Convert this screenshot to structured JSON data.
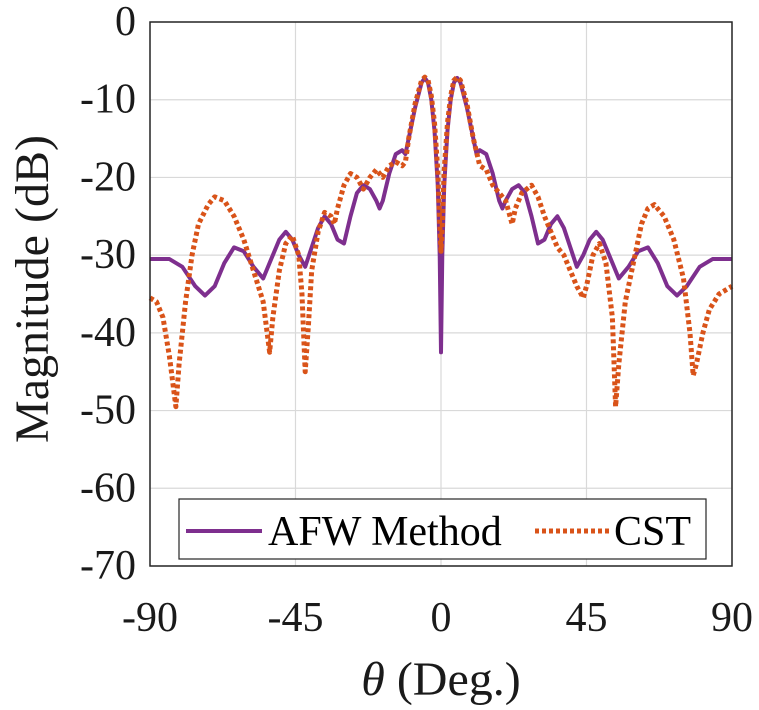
{
  "chart_data": {
    "type": "line",
    "title": "",
    "xlabel_symbol": "θ",
    "xlabel_rest": " (Deg.)",
    "ylabel": "Magnitude (dB)",
    "xlim": [
      -90,
      90
    ],
    "ylim": [
      -70,
      0
    ],
    "xticks": [
      -90,
      -45,
      0,
      45,
      90
    ],
    "yticks": [
      0,
      -10,
      -20,
      -30,
      -40,
      -50,
      -60,
      -70
    ],
    "grid": true,
    "legend": {
      "placement": "bottom-center",
      "orientation": "horizontal"
    },
    "series": [
      {
        "name": "AFW Method",
        "color": "#7e2f8e",
        "style": "solid",
        "points": [
          [
            -90,
            -30.5
          ],
          [
            -84,
            -30.5
          ],
          [
            -80,
            -31.5
          ],
          [
            -76,
            -34
          ],
          [
            -73,
            -35.2
          ],
          [
            -70,
            -34
          ],
          [
            -67,
            -31
          ],
          [
            -64,
            -29
          ],
          [
            -61,
            -29.5
          ],
          [
            -58,
            -31.5
          ],
          [
            -55,
            -33
          ],
          [
            -53,
            -31
          ],
          [
            -50,
            -28
          ],
          [
            -48,
            -27
          ],
          [
            -46,
            -28
          ],
          [
            -44,
            -30
          ],
          [
            -42,
            -31.5
          ],
          [
            -40,
            -29
          ],
          [
            -38,
            -26.5
          ],
          [
            -36,
            -25
          ],
          [
            -34,
            -26
          ],
          [
            -32,
            -28
          ],
          [
            -30,
            -28.5
          ],
          [
            -28,
            -25
          ],
          [
            -26,
            -22
          ],
          [
            -24,
            -21
          ],
          [
            -22,
            -21.5
          ],
          [
            -20,
            -23
          ],
          [
            -19,
            -24
          ],
          [
            -18,
            -23
          ],
          [
            -16,
            -19.5
          ],
          [
            -14,
            -17
          ],
          [
            -12,
            -16.5
          ],
          [
            -11,
            -17
          ],
          [
            -10,
            -15
          ],
          [
            -8,
            -11
          ],
          [
            -6,
            -7.8
          ],
          [
            -5,
            -7.2
          ],
          [
            -4,
            -7.8
          ],
          [
            -3,
            -10
          ],
          [
            -2,
            -14
          ],
          [
            -1,
            -21
          ],
          [
            -0.4,
            -30
          ],
          [
            0,
            -42.5
          ],
          [
            0.4,
            -30
          ],
          [
            1,
            -21
          ],
          [
            2,
            -14
          ],
          [
            3,
            -10
          ],
          [
            4,
            -7.8
          ],
          [
            5,
            -7.2
          ],
          [
            6,
            -7.8
          ],
          [
            8,
            -11
          ],
          [
            10,
            -15
          ],
          [
            11,
            -17
          ],
          [
            12,
            -16.5
          ],
          [
            14,
            -17
          ],
          [
            16,
            -19.5
          ],
          [
            18,
            -23
          ],
          [
            19,
            -24
          ],
          [
            20,
            -23
          ],
          [
            22,
            -21.5
          ],
          [
            24,
            -21
          ],
          [
            26,
            -22
          ],
          [
            28,
            -25
          ],
          [
            30,
            -28.5
          ],
          [
            32,
            -28
          ],
          [
            34,
            -26
          ],
          [
            36,
            -25
          ],
          [
            38,
            -26.5
          ],
          [
            40,
            -29
          ],
          [
            42,
            -31.5
          ],
          [
            44,
            -30
          ],
          [
            46,
            -28
          ],
          [
            48,
            -27
          ],
          [
            50,
            -28
          ],
          [
            53,
            -31
          ],
          [
            55,
            -33
          ],
          [
            58,
            -31.5
          ],
          [
            61,
            -29.5
          ],
          [
            64,
            -29
          ],
          [
            67,
            -31
          ],
          [
            70,
            -34
          ],
          [
            73,
            -35.2
          ],
          [
            76,
            -34
          ],
          [
            80,
            -31.5
          ],
          [
            84,
            -30.5
          ],
          [
            90,
            -30.5
          ]
        ]
      },
      {
        "name": "CST",
        "color": "#d95319",
        "style": "dotted",
        "points": [
          [
            -90,
            -35.5
          ],
          [
            -88,
            -36
          ],
          [
            -86,
            -38
          ],
          [
            -84,
            -43
          ],
          [
            -82,
            -49.5
          ],
          [
            -81,
            -44
          ],
          [
            -79,
            -36
          ],
          [
            -77,
            -30
          ],
          [
            -75,
            -26
          ],
          [
            -72,
            -23.5
          ],
          [
            -70,
            -22.5
          ],
          [
            -67,
            -23
          ],
          [
            -64,
            -25
          ],
          [
            -61,
            -28
          ],
          [
            -58,
            -32
          ],
          [
            -55,
            -36
          ],
          [
            -53,
            -42.5
          ],
          [
            -52,
            -38
          ],
          [
            -50,
            -32
          ],
          [
            -48,
            -28.5
          ],
          [
            -46,
            -27.5
          ],
          [
            -44,
            -30
          ],
          [
            -43,
            -35
          ],
          [
            -42,
            -45
          ],
          [
            -41,
            -39
          ],
          [
            -40,
            -32
          ],
          [
            -38,
            -27
          ],
          [
            -36,
            -24.5
          ],
          [
            -34,
            -25
          ],
          [
            -33,
            -26
          ],
          [
            -32,
            -24
          ],
          [
            -30,
            -21
          ],
          [
            -28,
            -19.5
          ],
          [
            -26,
            -20
          ],
          [
            -24,
            -21.5
          ],
          [
            -22,
            -20
          ],
          [
            -20,
            -19
          ],
          [
            -18,
            -20
          ],
          [
            -16,
            -18.5
          ],
          [
            -14,
            -18
          ],
          [
            -12,
            -18.5
          ],
          [
            -11,
            -18
          ],
          [
            -10,
            -15
          ],
          [
            -8,
            -10.5
          ],
          [
            -6,
            -7.5
          ],
          [
            -5,
            -7.1
          ],
          [
            -4,
            -7.5
          ],
          [
            -3,
            -9.5
          ],
          [
            -2,
            -13
          ],
          [
            -1,
            -19
          ],
          [
            -0.4,
            -26
          ],
          [
            0,
            -29.5
          ],
          [
            0.4,
            -26
          ],
          [
            1,
            -19
          ],
          [
            2,
            -13
          ],
          [
            3,
            -9.5
          ],
          [
            4,
            -7.5
          ],
          [
            5,
            -7.1
          ],
          [
            6,
            -7.5
          ],
          [
            8,
            -10.5
          ],
          [
            10,
            -15
          ],
          [
            12,
            -18.5
          ],
          [
            14,
            -19
          ],
          [
            16,
            -21
          ],
          [
            18,
            -22
          ],
          [
            20,
            -23
          ],
          [
            22,
            -26
          ],
          [
            23,
            -24
          ],
          [
            25,
            -22
          ],
          [
            28,
            -21
          ],
          [
            30,
            -22.5
          ],
          [
            32,
            -25
          ],
          [
            34,
            -27
          ],
          [
            36,
            -29
          ],
          [
            38,
            -30
          ],
          [
            40,
            -32
          ],
          [
            42,
            -34
          ],
          [
            44,
            -35.5
          ],
          [
            45,
            -34
          ],
          [
            47,
            -30
          ],
          [
            49,
            -28.5
          ],
          [
            51,
            -31
          ],
          [
            53,
            -38
          ],
          [
            54,
            -49.5
          ],
          [
            55,
            -44
          ],
          [
            57,
            -36
          ],
          [
            60,
            -30
          ],
          [
            62,
            -26
          ],
          [
            64,
            -24
          ],
          [
            66,
            -23.5
          ],
          [
            69,
            -25
          ],
          [
            72,
            -28
          ],
          [
            75,
            -33
          ],
          [
            77,
            -40
          ],
          [
            78,
            -45.5
          ],
          [
            79,
            -44
          ],
          [
            81,
            -40
          ],
          [
            83,
            -37
          ],
          [
            86,
            -35
          ],
          [
            90,
            -34
          ]
        ]
      }
    ]
  }
}
